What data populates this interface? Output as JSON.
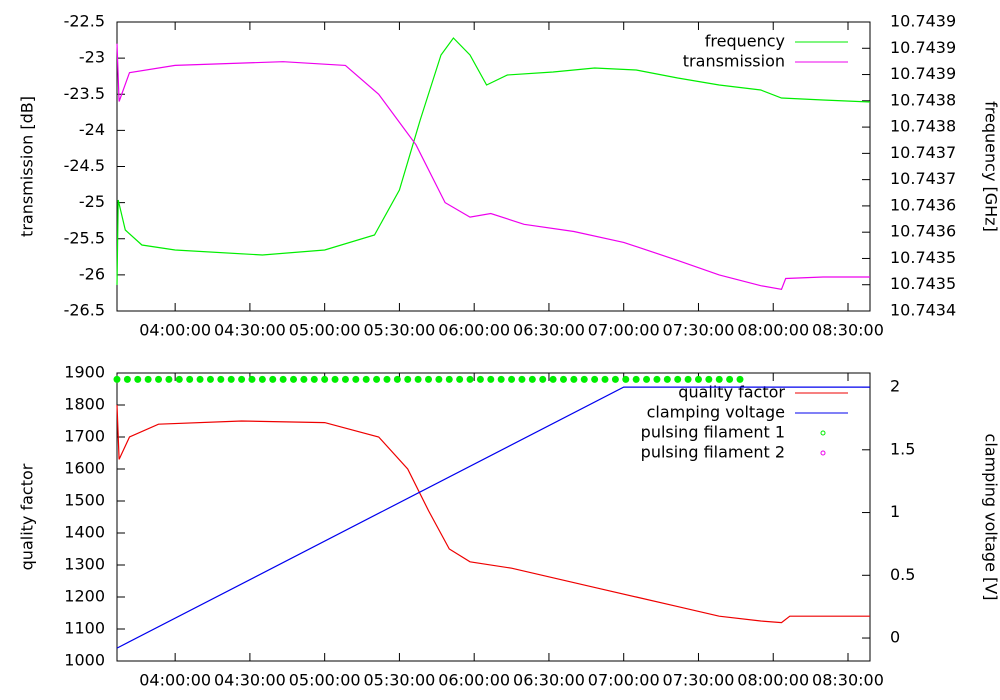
{
  "chart_data": [
    {
      "type": "line",
      "ylabel": "transmission [dB]",
      "y2label": "frequency [GHz]",
      "xlim": [
        13000,
        31130
      ],
      "xticks": [
        {
          "value": 14400,
          "label": "04:00:00"
        },
        {
          "value": 16200,
          "label": "04:30:00"
        },
        {
          "value": 18000,
          "label": "05:00:00"
        },
        {
          "value": 19800,
          "label": "05:30:00"
        },
        {
          "value": 21600,
          "label": "06:00:00"
        },
        {
          "value": 23400,
          "label": "06:30:00"
        },
        {
          "value": 25200,
          "label": "07:00:00"
        },
        {
          "value": 27000,
          "label": "07:30:00"
        },
        {
          "value": 28800,
          "label": "08:00:00"
        },
        {
          "value": 30600,
          "label": "08:30:00"
        }
      ],
      "ylim": [
        -26.5,
        -22.5
      ],
      "yticks": [
        -22.5,
        -23,
        -23.5,
        -24,
        -24.5,
        -25,
        -25.5,
        -26,
        -26.5
      ],
      "y2lim": [
        10.74342,
        10.743948
      ],
      "y2ticks": [
        {
          "value": 10.743948,
          "label": "10.7439"
        },
        {
          "value": 10.7439,
          "label": "10.7439"
        },
        {
          "value": 10.743852,
          "label": "10.7439"
        },
        {
          "value": 10.743804,
          "label": "10.7438"
        },
        {
          "value": 10.743756,
          "label": "10.7438"
        },
        {
          "value": 10.743708,
          "label": "10.7437"
        },
        {
          "value": 10.74366,
          "label": "10.7437"
        },
        {
          "value": 10.743612,
          "label": "10.7436"
        },
        {
          "value": 10.743564,
          "label": "10.7436"
        },
        {
          "value": 10.743516,
          "label": "10.7435"
        },
        {
          "value": 10.743468,
          "label": "10.7435"
        },
        {
          "value": 10.74342,
          "label": "10.7434"
        }
      ],
      "legend": "top-right",
      "series": [
        {
          "name": "frequency",
          "color": "#00ee00",
          "axis": "y2",
          "style": "lines",
          "x": [
            13000,
            13030,
            13200,
            13600,
            14400,
            16500,
            18000,
            19200,
            19800,
            20300,
            20800,
            21100,
            21500,
            21900,
            22400,
            23500,
            24500,
            25500,
            26500,
            27500,
            28500,
            29000,
            30000,
            31130
          ],
          "values": [
            10.7434675,
            10.7436228,
            10.743568,
            10.7435406,
            10.7435314,
            10.7435223,
            10.7435314,
            10.7435588,
            10.7436411,
            10.743769,
            10.7438877,
            10.7439188,
            10.7438877,
            10.7438329,
            10.7438512,
            10.7438566,
            10.743864,
            10.7438603,
            10.7438457,
            10.7438329,
            10.7438238,
            10.7438091,
            10.7438055,
            10.7438018
          ]
        },
        {
          "name": "transmission",
          "color": "#ee00ee",
          "style": "lines",
          "x": [
            13000,
            13050,
            13300,
            14400,
            17000,
            18500,
            19300,
            20200,
            20900,
            21500,
            22000,
            22800,
            24000,
            25200,
            26500,
            27500,
            28500,
            29000,
            29100,
            30000,
            31130
          ],
          "values": [
            -22.8,
            -23.6,
            -23.2,
            -23.1,
            -23.05,
            -23.1,
            -23.5,
            -24.2,
            -25.0,
            -25.2,
            -25.15,
            -25.3,
            -25.4,
            -25.55,
            -25.8,
            -26.0,
            -26.15,
            -26.2,
            -26.05,
            -26.03,
            -26.03
          ]
        }
      ]
    },
    {
      "type": "line",
      "ylabel": "quality factor",
      "y2label": "clamping voltage [V]",
      "xlim": [
        13000,
        31130
      ],
      "xticks": [
        {
          "value": 14400,
          "label": "04:00:00"
        },
        {
          "value": 16200,
          "label": "04:30:00"
        },
        {
          "value": 18000,
          "label": "05:00:00"
        },
        {
          "value": 19800,
          "label": "05:30:00"
        },
        {
          "value": 21600,
          "label": "06:00:00"
        },
        {
          "value": 23400,
          "label": "06:30:00"
        },
        {
          "value": 25200,
          "label": "07:00:00"
        },
        {
          "value": 27000,
          "label": "07:30:00"
        },
        {
          "value": 28800,
          "label": "08:00:00"
        },
        {
          "value": 30600,
          "label": "08:30:00"
        }
      ],
      "ylim": [
        1000,
        1900
      ],
      "yticks": [
        1000,
        1100,
        1200,
        1300,
        1400,
        1500,
        1600,
        1700,
        1800,
        1900
      ],
      "y2lim": [
        -0.183,
        2.112
      ],
      "y2ticks": [
        0,
        0.5,
        1,
        1.5,
        2
      ],
      "legend": "top-right",
      "series": [
        {
          "name": "quality factor",
          "color": "#ee0000",
          "style": "lines",
          "x": [
            13000,
            13050,
            13300,
            14000,
            16000,
            18000,
            19300,
            20000,
            20500,
            21000,
            21500,
            22500,
            23500,
            24500,
            25500,
            26500,
            27500,
            28500,
            29000,
            29200,
            30000,
            31130
          ],
          "values": [
            1800,
            1630,
            1700,
            1740,
            1750,
            1745,
            1700,
            1600,
            1470,
            1350,
            1310,
            1290,
            1260,
            1230,
            1200,
            1170,
            1140,
            1125,
            1120,
            1140,
            1140,
            1140
          ]
        },
        {
          "name": "clamping voltage",
          "color": "#0000ee",
          "axis": "y2",
          "style": "lines",
          "x": [
            13000,
            25200,
            31130
          ],
          "values": [
            -0.08,
            2,
            2
          ]
        },
        {
          "name": "pulsing filament 1",
          "color": "#00ee00",
          "style": "points",
          "x": [
            13000,
            13250,
            13500,
            13750,
            14000,
            14250,
            14500,
            14750,
            15000,
            15250,
            15500,
            15750,
            16000,
            16250,
            16500,
            16750,
            17000,
            17250,
            17500,
            17750,
            18000,
            18250,
            18500,
            18750,
            19000,
            19250,
            19500,
            19750,
            20000,
            20250,
            20500,
            20750,
            21000,
            21250,
            21500,
            21750,
            22000,
            22250,
            22500,
            22750,
            23000,
            23250,
            23500,
            23750,
            24000,
            24250,
            24500,
            24750,
            25000,
            25250,
            25500,
            25750,
            26000,
            26250,
            26500,
            26750,
            27000,
            27250,
            27500,
            27750,
            28000
          ],
          "values": [
            1880,
            1880,
            1880,
            1880,
            1880,
            1880,
            1880,
            1880,
            1880,
            1880,
            1880,
            1880,
            1880,
            1880,
            1880,
            1880,
            1880,
            1880,
            1880,
            1880,
            1880,
            1880,
            1880,
            1880,
            1880,
            1880,
            1880,
            1880,
            1880,
            1880,
            1880,
            1880,
            1880,
            1880,
            1880,
            1880,
            1880,
            1880,
            1880,
            1880,
            1880,
            1880,
            1880,
            1880,
            1880,
            1880,
            1880,
            1880,
            1880,
            1880,
            1880,
            1880,
            1880,
            1880,
            1880,
            1880,
            1880,
            1880,
            1880,
            1880,
            1880
          ]
        },
        {
          "name": "pulsing filament 2",
          "color": "#ee00ee",
          "style": "points",
          "x": [],
          "values": []
        }
      ]
    }
  ]
}
